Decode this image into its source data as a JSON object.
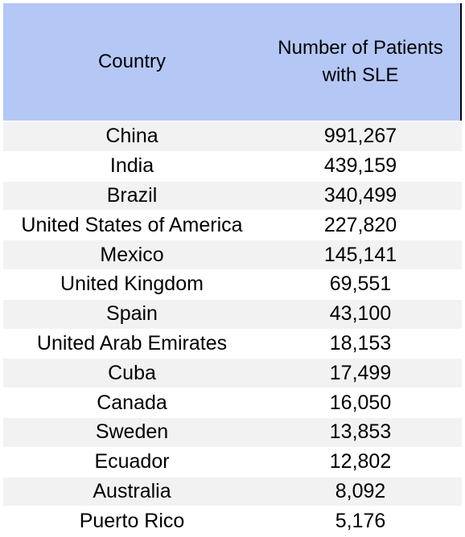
{
  "chart_data": {
    "type": "table",
    "columns": [
      "Country",
      "Number of Patients with SLE"
    ],
    "header": {
      "country_line1": "Country",
      "patients_line1": "Number of Patients",
      "patients_line2": "with SLE"
    },
    "rows": [
      {
        "country": "China",
        "value": "991,267"
      },
      {
        "country": "India",
        "value": "439,159"
      },
      {
        "country": "Brazil",
        "value": "340,499"
      },
      {
        "country": "United States of America",
        "value": "227,820"
      },
      {
        "country": "Mexico",
        "value": "145,141"
      },
      {
        "country": "United Kingdom",
        "value": "69,551"
      },
      {
        "country": "Spain",
        "value": "43,100"
      },
      {
        "country": "United Arab Emirates",
        "value": "18,153"
      },
      {
        "country": "Cuba",
        "value": "17,499"
      },
      {
        "country": "Canada",
        "value": "16,050"
      },
      {
        "country": "Sweden",
        "value": "13,853"
      },
      {
        "country": "Ecuador",
        "value": "12,802"
      },
      {
        "country": "Australia",
        "value": "8,092"
      },
      {
        "country": "Puerto Rico",
        "value": "5,176"
      }
    ],
    "colors": {
      "header_background": "#b4c7f5",
      "shaded_row": "#f2f2f2",
      "plain_row": "#ffffff"
    }
  }
}
